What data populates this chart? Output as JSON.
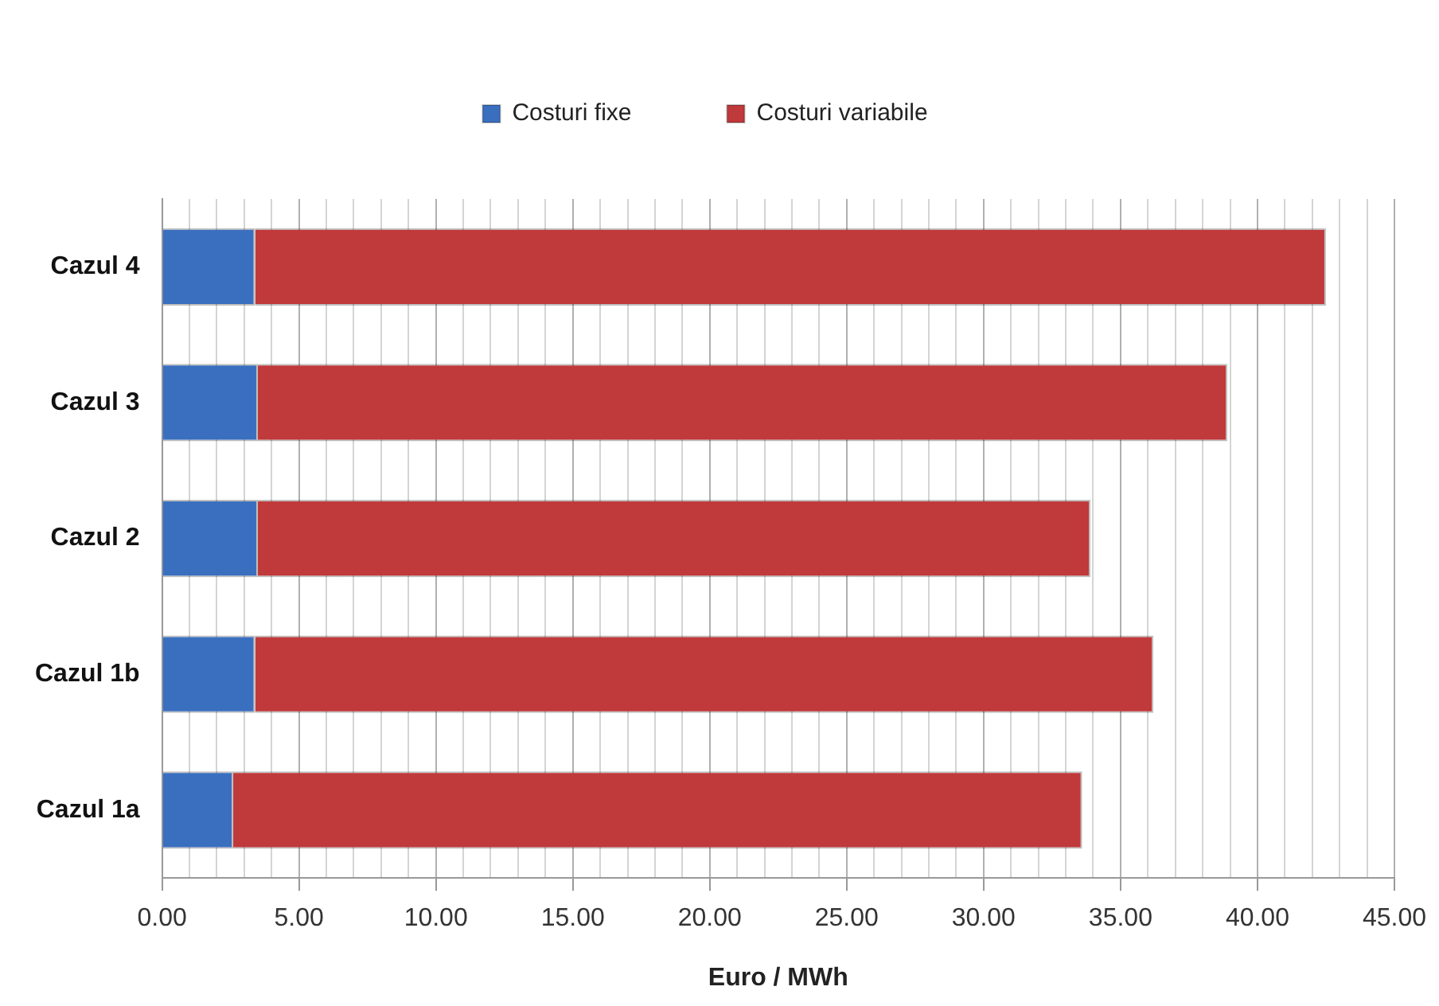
{
  "chart_data": {
    "type": "bar",
    "orientation": "horizontal",
    "stacked": true,
    "xlabel": "Euro / MWh",
    "categories": [
      "Cazul 4",
      "Cazul 3",
      "Cazul 2",
      "Cazul 1b",
      "Cazul 1a"
    ],
    "series": [
      {
        "name": "Costuri fixe",
        "color": "#3a6fbf",
        "values": [
          3.4,
          3.5,
          3.5,
          3.4,
          2.6
        ]
      },
      {
        "name": "Costuri variabile",
        "color": "#c0393b",
        "values": [
          39.1,
          35.4,
          30.4,
          32.8,
          31.0
        ]
      }
    ],
    "xlim": [
      0,
      45
    ],
    "xticks": [
      {
        "value": 0,
        "label": "0.00"
      },
      {
        "value": 1,
        "label": null
      },
      {
        "value": 2,
        "label": null
      },
      {
        "value": 3,
        "label": null
      },
      {
        "value": 4,
        "label": null
      },
      {
        "value": 5,
        "label": "5.00"
      },
      {
        "value": 6,
        "label": null
      },
      {
        "value": 7,
        "label": null
      },
      {
        "value": 8,
        "label": null
      },
      {
        "value": 9,
        "label": null
      },
      {
        "value": 10,
        "label": "10.00"
      },
      {
        "value": 11,
        "label": null
      },
      {
        "value": 12,
        "label": null
      },
      {
        "value": 13,
        "label": null
      },
      {
        "value": 14,
        "label": null
      },
      {
        "value": 15,
        "label": "15.00"
      },
      {
        "value": 16,
        "label": null
      },
      {
        "value": 17,
        "label": null
      },
      {
        "value": 18,
        "label": null
      },
      {
        "value": 19,
        "label": null
      },
      {
        "value": 20,
        "label": "20.00"
      },
      {
        "value": 21,
        "label": null
      },
      {
        "value": 22,
        "label": null
      },
      {
        "value": 23,
        "label": null
      },
      {
        "value": 24,
        "label": null
      },
      {
        "value": 25,
        "label": "25.00"
      },
      {
        "value": 26,
        "label": null
      },
      {
        "value": 27,
        "label": null
      },
      {
        "value": 28,
        "label": null
      },
      {
        "value": 29,
        "label": null
      },
      {
        "value": 30,
        "label": "30.00"
      },
      {
        "value": 31,
        "label": null
      },
      {
        "value": 32,
        "label": null
      },
      {
        "value": 33,
        "label": null
      },
      {
        "value": 34,
        "label": null
      },
      {
        "value": 35,
        "label": "35.00"
      },
      {
        "value": 36,
        "label": null
      },
      {
        "value": 37,
        "label": null
      },
      {
        "value": 38,
        "label": null
      },
      {
        "value": 39,
        "label": null
      },
      {
        "value": 40,
        "label": "40.00"
      },
      {
        "value": 41,
        "label": null
      },
      {
        "value": 42,
        "label": null
      },
      {
        "value": 43,
        "label": null
      },
      {
        "value": 44,
        "label": null
      },
      {
        "value": 45,
        "label": "45.00"
      }
    ],
    "grid": "x",
    "legend": "top"
  }
}
